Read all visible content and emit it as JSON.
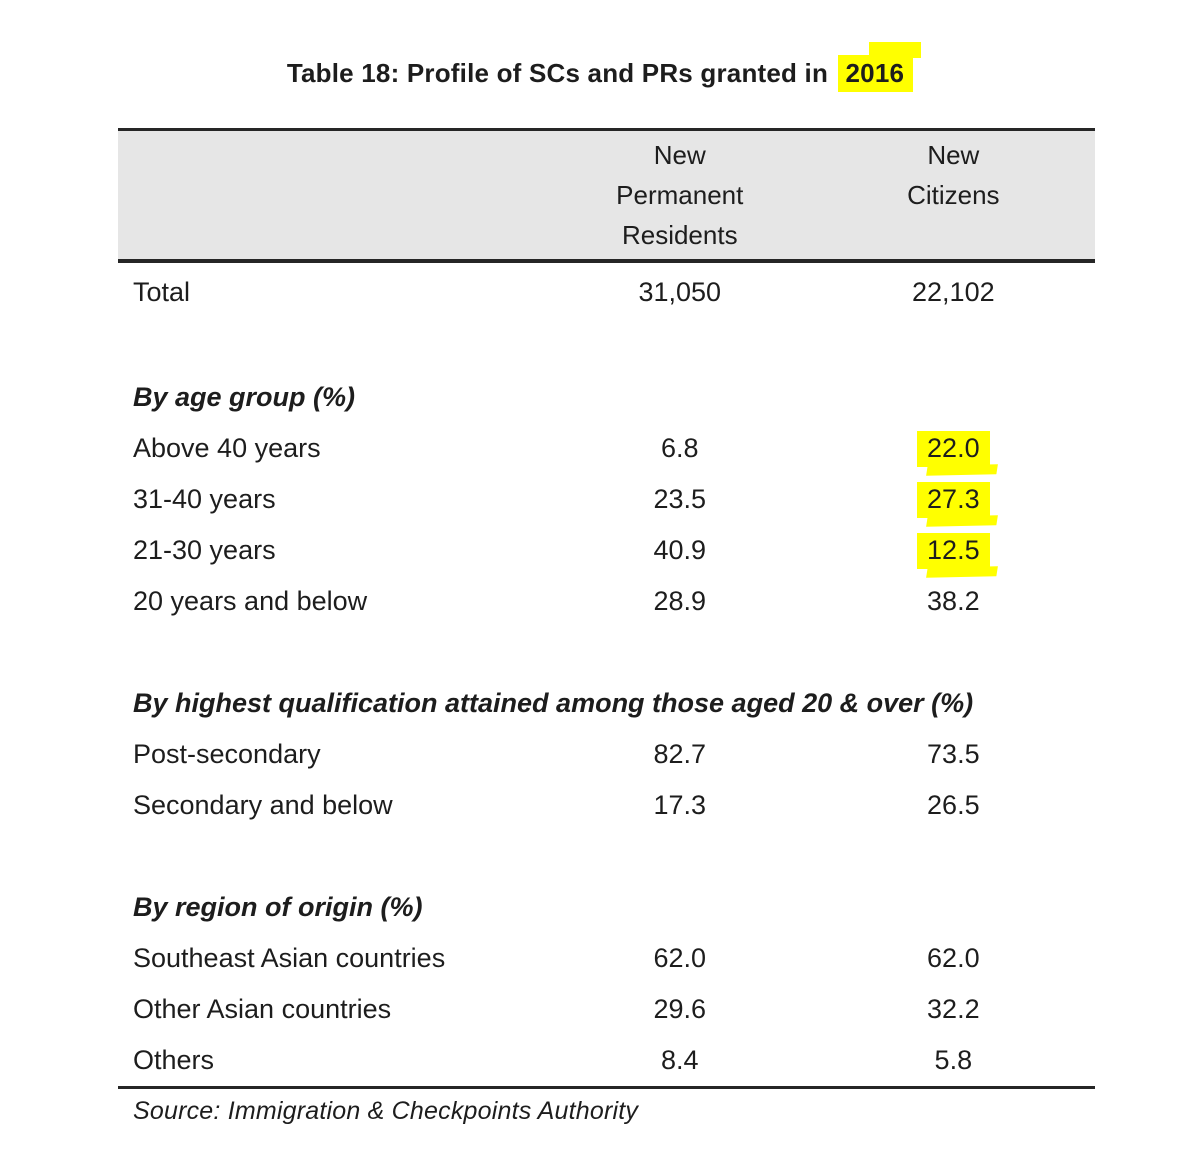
{
  "title": {
    "text": "Table 18: Profile of SCs and PRs granted in",
    "highlighted_year": "2016"
  },
  "table": {
    "column_headers": {
      "col2": "New\nPermanent\nResidents",
      "col3": "New\nCitizens"
    },
    "total_row": {
      "label": "Total",
      "new_permanent_residents": "31,050",
      "new_citizens": "22,102"
    },
    "sections": [
      {
        "header": "By age group (%)",
        "rows": [
          {
            "label": "Above 40 years",
            "new_permanent_residents": "6.8",
            "new_citizens": "22.0",
            "highlight": true
          },
          {
            "label": "31-40 years",
            "new_permanent_residents": "23.5",
            "new_citizens": "27.3",
            "highlight": true
          },
          {
            "label": "21-30 years",
            "new_permanent_residents": "40.9",
            "new_citizens": "12.5",
            "highlight": true
          },
          {
            "label": "20 years and below",
            "new_permanent_residents": "28.9",
            "new_citizens": "38.2",
            "highlight": false
          }
        ]
      },
      {
        "header": "By highest qualification attained among those aged 20 & over (%)",
        "rows": [
          {
            "label": "Post-secondary",
            "new_permanent_residents": "82.7",
            "new_citizens": "73.5",
            "highlight": false
          },
          {
            "label": "Secondary and below",
            "new_permanent_residents": "17.3",
            "new_citizens": "26.5",
            "highlight": false
          }
        ]
      },
      {
        "header": "By region of origin (%)",
        "rows": [
          {
            "label": "Southeast Asian countries",
            "new_permanent_residents": "62.0",
            "new_citizens": "62.0",
            "highlight": false
          },
          {
            "label": "Other Asian countries",
            "new_permanent_residents": "29.6",
            "new_citizens": "32.2",
            "highlight": false
          },
          {
            "label": "Others",
            "new_permanent_residents": "8.4",
            "new_citizens": "5.8",
            "highlight": false
          }
        ]
      }
    ]
  },
  "source": "Source: Immigration & Checkpoints Authority",
  "colors": {
    "highlight": "#ffff00",
    "header_background": "#e6e6e6",
    "rule": "#262626",
    "text": "#1d1d1d"
  }
}
